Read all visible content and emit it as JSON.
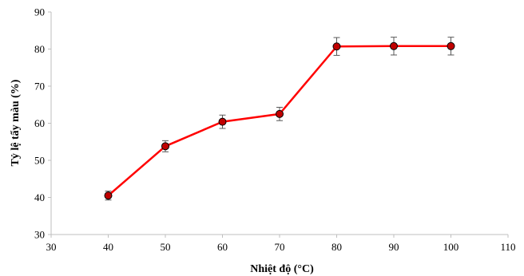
{
  "chart_data": {
    "type": "line",
    "xlabel": "Nhiệt độ (°C)",
    "ylabel": "Tỷ lệ tẩy màu (%)",
    "xlim": [
      30,
      110
    ],
    "ylim": [
      30,
      90
    ],
    "xticks": [
      30,
      40,
      50,
      60,
      70,
      80,
      90,
      100,
      110
    ],
    "yticks": [
      30,
      40,
      50,
      60,
      70,
      80,
      90
    ],
    "grid": false,
    "series": [
      {
        "x": [
          40,
          50,
          60,
          70,
          80,
          90,
          100
        ],
        "values": [
          40.5,
          53.8,
          60.4,
          62.5,
          80.7,
          80.8,
          80.8
        ],
        "error": [
          1.2,
          1.5,
          1.8,
          1.8,
          2.4,
          2.4,
          2.4
        ],
        "line_color": "#ff0000",
        "marker_color": "#c00000"
      }
    ]
  }
}
